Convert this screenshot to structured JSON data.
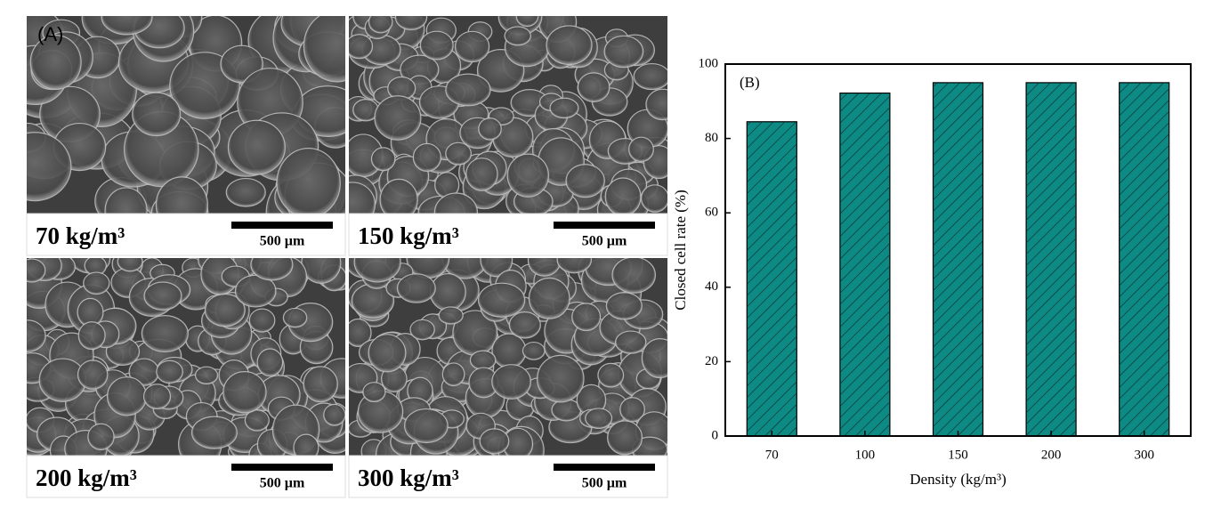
{
  "figure_label": "(A)",
  "panels": [
    {
      "label": "70 kg/m³",
      "scale_bar": "500 µm"
    },
    {
      "label": "150 kg/m³",
      "scale_bar": "500 µm"
    },
    {
      "label": "200 kg/m³",
      "scale_bar": "500 µm"
    },
    {
      "label": "300 kg/m³",
      "scale_bar": "500 µm"
    }
  ],
  "chart_data": {
    "type": "bar",
    "panel_label": "(B)",
    "xlabel": "Density (kg/m³)",
    "ylabel": "Closed cell rate (%)",
    "categories": [
      "70",
      "100",
      "150",
      "200",
      "300"
    ],
    "values": [
      84.5,
      92.2,
      95,
      95,
      95
    ],
    "color": "#0e8a84",
    "hatch": true,
    "ylim": [
      0,
      100
    ],
    "yticks": [
      0,
      20,
      40,
      60,
      80,
      100
    ]
  }
}
